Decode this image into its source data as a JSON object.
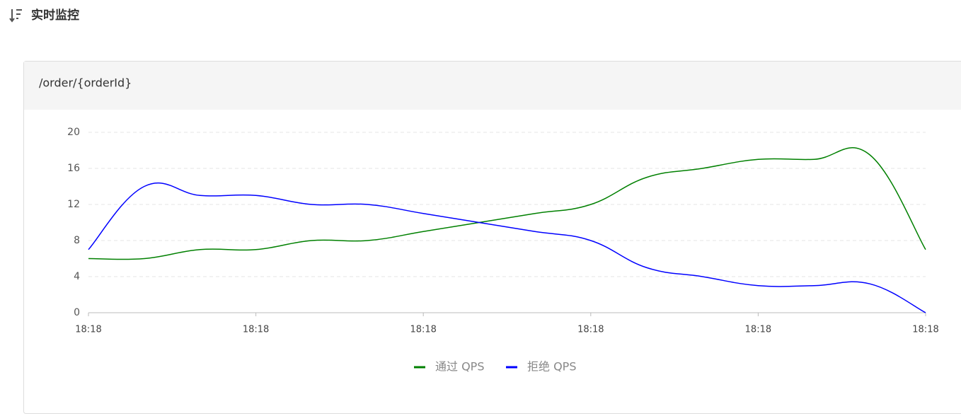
{
  "header": {
    "title": "实时监控"
  },
  "panel": {
    "title": "/order/{orderId}"
  },
  "chart_data": {
    "type": "line",
    "categories": [
      "18:18",
      null,
      null,
      "18:18",
      null,
      null,
      "18:18",
      null,
      null,
      "18:18",
      null,
      null,
      "18:18",
      null,
      null,
      "18:18"
    ],
    "series": [
      {
        "name": "通过 QPS",
        "color": "#008000",
        "values": [
          6,
          6,
          7,
          7,
          8,
          8,
          9,
          10,
          11,
          12,
          15,
          16,
          17,
          17,
          17.5,
          7
        ]
      },
      {
        "name": "拒绝 QPS",
        "color": "#0000ff",
        "values": [
          7,
          14,
          13,
          13,
          12,
          12,
          11,
          10,
          9,
          8,
          5,
          4,
          3,
          3,
          3.2,
          0
        ]
      }
    ],
    "ylim": [
      0,
      20
    ],
    "yticks": [
      0,
      4,
      8,
      12,
      16,
      20
    ],
    "grid": true,
    "legend": "bottom"
  }
}
